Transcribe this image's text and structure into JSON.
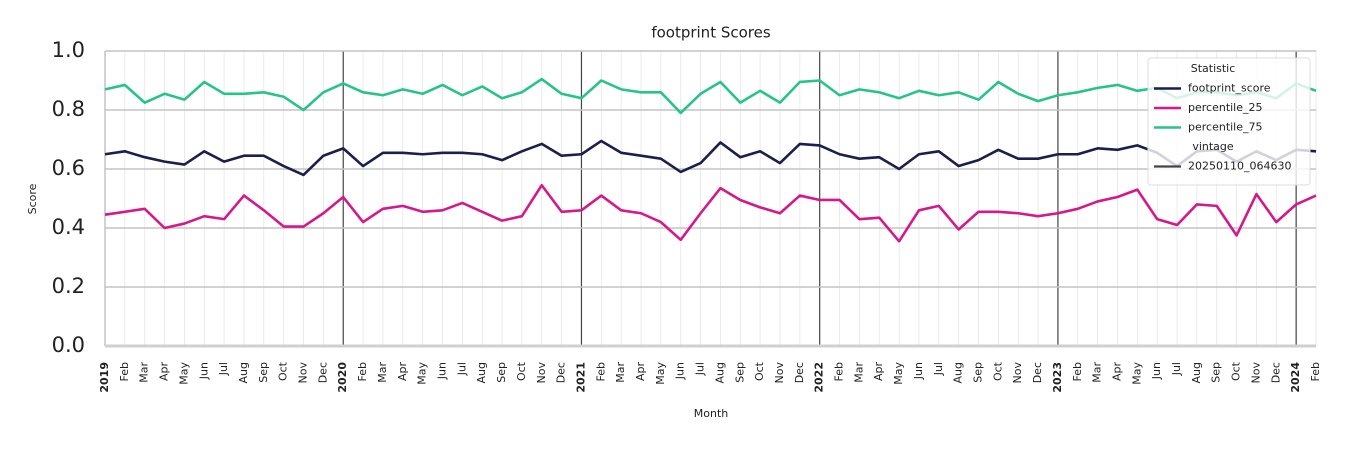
{
  "chart_data": {
    "type": "line",
    "title": "footprint Scores",
    "xlabel": "Month",
    "ylabel": "Score",
    "categories": [
      "2019",
      "Feb",
      "Mar",
      "Apr",
      "May",
      "Jun",
      "Jul",
      "Aug",
      "Sep",
      "Oct",
      "Nov",
      "Dec",
      "2020",
      "Feb",
      "Mar",
      "Apr",
      "May",
      "Jun",
      "Jul",
      "Aug",
      "Sep",
      "Oct",
      "Nov",
      "Dec",
      "2021",
      "Feb",
      "Mar",
      "Apr",
      "May",
      "Jun",
      "Jul",
      "Aug",
      "Sep",
      "Oct",
      "Nov",
      "Dec",
      "2022",
      "Feb",
      "Mar",
      "Apr",
      "May",
      "Jun",
      "Jul",
      "Aug",
      "Sep",
      "Oct",
      "Nov",
      "Dec",
      "2023",
      "Feb",
      "Mar",
      "Apr",
      "May",
      "Jun",
      "Jul",
      "Aug",
      "Sep",
      "Oct",
      "Nov",
      "Dec",
      "2024",
      "Feb"
    ],
    "series": [
      {
        "name": "footprint_score",
        "color": "#1b1f4b",
        "values": [
          0.65,
          0.66,
          0.64,
          0.625,
          0.615,
          0.66,
          0.625,
          0.645,
          0.645,
          0.61,
          0.58,
          0.645,
          0.67,
          0.61,
          0.655,
          0.655,
          0.65,
          0.655,
          0.655,
          0.65,
          0.63,
          0.66,
          0.685,
          0.645,
          0.65,
          0.695,
          0.655,
          0.645,
          0.635,
          0.59,
          0.62,
          0.69,
          0.64,
          0.66,
          0.62,
          0.685,
          0.68,
          0.65,
          0.635,
          0.64,
          0.6,
          0.65,
          0.66,
          0.61,
          0.63,
          0.665,
          0.635,
          0.635,
          0.65,
          0.65,
          0.67,
          0.665,
          0.68,
          0.655,
          0.61,
          0.66,
          0.665,
          0.625,
          0.66,
          0.63,
          0.665,
          0.66
        ]
      },
      {
        "name": "percentile_25",
        "color": "#d4198a",
        "values": [
          0.445,
          0.455,
          0.465,
          0.4,
          0.415,
          0.44,
          0.43,
          0.51,
          0.46,
          0.405,
          0.405,
          0.45,
          0.505,
          0.42,
          0.465,
          0.475,
          0.455,
          0.46,
          0.485,
          0.455,
          0.425,
          0.44,
          0.545,
          0.455,
          0.46,
          0.51,
          0.46,
          0.45,
          0.42,
          0.36,
          0.45,
          0.535,
          0.495,
          0.47,
          0.45,
          0.51,
          0.495,
          0.495,
          0.43,
          0.435,
          0.355,
          0.46,
          0.475,
          0.395,
          0.455,
          0.455,
          0.45,
          0.44,
          0.45,
          0.465,
          0.49,
          0.505,
          0.53,
          0.43,
          0.41,
          0.48,
          0.475,
          0.375,
          0.515,
          0.42,
          0.48,
          0.51
        ]
      },
      {
        "name": "percentile_75",
        "color": "#27c48a",
        "values": [
          0.87,
          0.885,
          0.825,
          0.855,
          0.835,
          0.895,
          0.855,
          0.855,
          0.86,
          0.845,
          0.8,
          0.86,
          0.89,
          0.86,
          0.85,
          0.87,
          0.855,
          0.885,
          0.85,
          0.88,
          0.84,
          0.86,
          0.905,
          0.855,
          0.84,
          0.9,
          0.87,
          0.86,
          0.86,
          0.79,
          0.855,
          0.895,
          0.825,
          0.865,
          0.825,
          0.895,
          0.9,
          0.85,
          0.87,
          0.86,
          0.84,
          0.865,
          0.85,
          0.86,
          0.835,
          0.895,
          0.855,
          0.83,
          0.85,
          0.86,
          0.875,
          0.885,
          0.865,
          0.875,
          0.84,
          0.86,
          0.86,
          0.85,
          0.86,
          0.84,
          0.89,
          0.865
        ]
      }
    ],
    "ylim": [
      0.0,
      1.0
    ],
    "yticks": [
      {
        "value": 0,
        "label": "0.0"
      },
      0.2,
      0.4,
      0.6,
      0.8,
      {
        "value": 1,
        "label": "1.0"
      }
    ],
    "grid": true,
    "legend_title": "Statistic",
    "legend_position": "upper right",
    "legend_extra": {
      "title": "vintage",
      "entries": [
        {
          "name": "20250110_064630",
          "color": "#444444"
        }
      ]
    }
  }
}
